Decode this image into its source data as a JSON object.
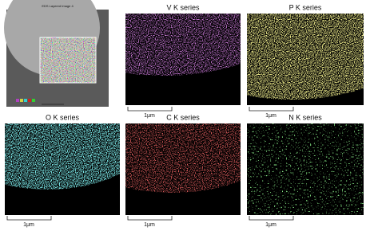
{
  "panels": [
    {
      "title": "EDS Layered Image 4"
    },
    {
      "title": "V K series",
      "scale_bar": "1μm"
    },
    {
      "title": "P K series",
      "scale_bar": "1μm"
    },
    {
      "title": "O K series",
      "scale_bar": "1μm"
    },
    {
      "title": "C K series",
      "scale_bar": "1μm"
    },
    {
      "title": "N K series",
      "scale_bar": "1μm"
    }
  ]
}
